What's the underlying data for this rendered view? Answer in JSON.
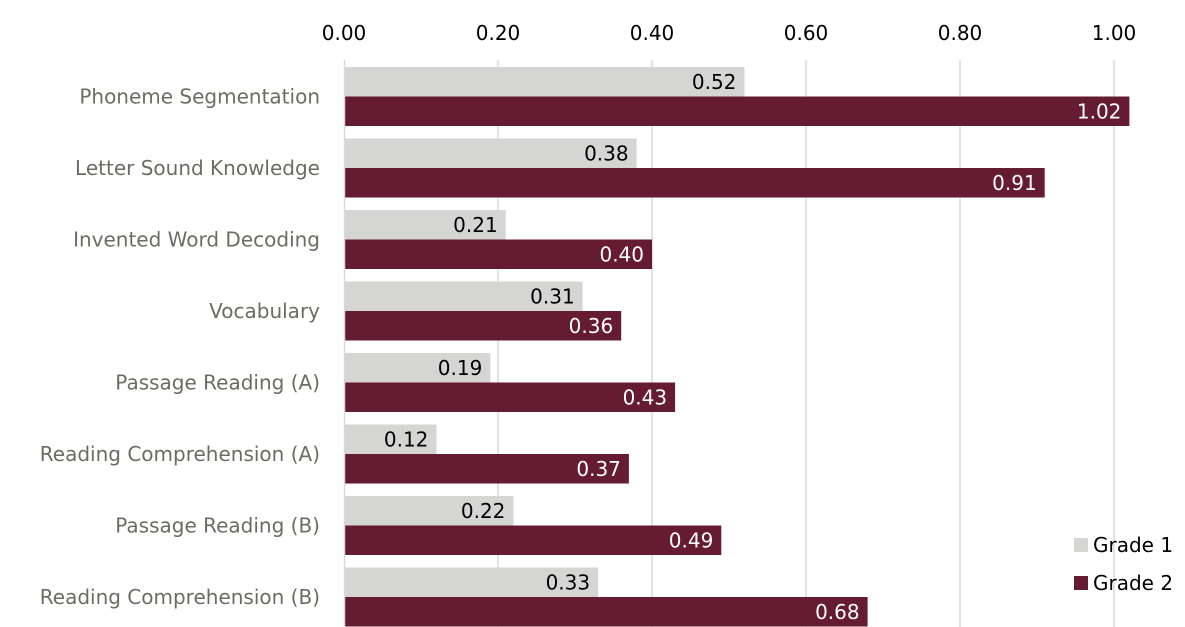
{
  "chart_data": {
    "type": "bar",
    "orientation": "horizontal",
    "categories": [
      "Phoneme Segmentation",
      "Letter Sound Knowledge",
      "Invented Word Decoding",
      "Vocabulary",
      "Passage Reading (A)",
      "Reading Comprehension (A)",
      "Passage Reading (B)",
      "Reading Comprehension (B)"
    ],
    "series": [
      {
        "name": "Grade 1",
        "color": "#d5d5d3",
        "values": [
          0.52,
          0.38,
          0.21,
          0.31,
          0.19,
          0.12,
          0.22,
          0.33
        ],
        "labels": [
          "0.52",
          "0.38",
          "0.21",
          "0.31",
          "0.19",
          "0.12",
          "0.22",
          "0.33"
        ],
        "label_color": "#000000"
      },
      {
        "name": "Grade 2",
        "color": "#651c32",
        "values": [
          1.02,
          0.91,
          0.4,
          0.36,
          0.43,
          0.37,
          0.49,
          0.68
        ],
        "labels": [
          "1.02",
          "0.91",
          "0.40",
          "0.36",
          "0.43",
          "0.37",
          "0.49",
          "0.68"
        ],
        "label_color": "#ffffff"
      }
    ],
    "x_axis": {
      "position": "top",
      "range": [
        0,
        1.0
      ],
      "ticks": [
        0,
        0.2,
        0.4,
        0.6,
        0.8,
        1.0
      ],
      "tick_labels": [
        "0.00",
        "0.20",
        "0.40",
        "0.60",
        "0.80",
        "1.00"
      ]
    },
    "grid": true,
    "legend": {
      "placement": "bottom-right"
    },
    "title": "",
    "xlabel": "",
    "ylabel": ""
  }
}
